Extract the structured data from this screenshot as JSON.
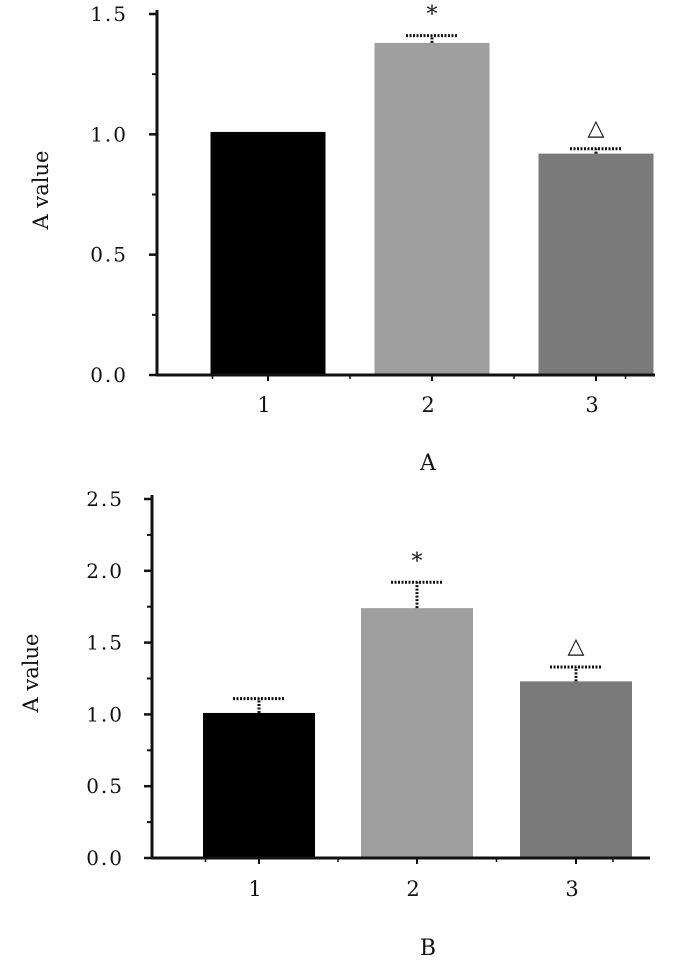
{
  "chart_data": [
    {
      "type": "bar",
      "panel_label": "A",
      "title": "",
      "xlabel": "",
      "ylabel": "A value",
      "categories": [
        "1",
        "2",
        "3"
      ],
      "values": [
        1.01,
        1.38,
        0.92
      ],
      "errors": [
        0.0,
        0.03,
        0.02
      ],
      "annotations": [
        "",
        "*",
        "△"
      ],
      "bar_colors": [
        "#000000",
        "#9f9f9f",
        "#7a7a7a"
      ],
      "ylim": [
        0,
        1.5
      ],
      "yticks": [
        0.0,
        0.5,
        1.0,
        1.5
      ],
      "ytick_labels": [
        "0.0",
        "0.5",
        "1.0",
        "1.5"
      ],
      "grid": false,
      "legend": "none"
    },
    {
      "type": "bar",
      "panel_label": "B",
      "title": "",
      "xlabel": "",
      "ylabel": "A value",
      "categories": [
        "1",
        "2",
        "3"
      ],
      "values": [
        1.01,
        1.74,
        1.23
      ],
      "errors": [
        0.1,
        0.18,
        0.1
      ],
      "annotations": [
        "",
        "*",
        "△"
      ],
      "bar_colors": [
        "#000000",
        "#9f9f9f",
        "#7a7a7a"
      ],
      "ylim": [
        0,
        2.5
      ],
      "yticks": [
        0.0,
        0.5,
        1.0,
        1.5,
        2.0,
        2.5
      ],
      "ytick_labels": [
        "0.0",
        "0.5",
        "1.0",
        "1.5",
        "2.0",
        "2.5"
      ],
      "grid": false,
      "legend": "none"
    }
  ]
}
